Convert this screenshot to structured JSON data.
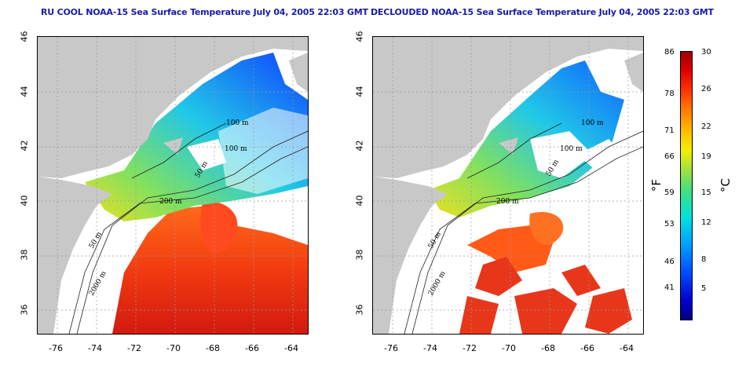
{
  "left_panel": {
    "title": "RU COOL NOAA-15 Sea Surface Temperature July 04, 2005 22:03 GMT",
    "contours": [
      "100 m",
      "100 m",
      "50 m",
      "200 m",
      "50 m",
      "2000 m"
    ]
  },
  "right_panel": {
    "title": "DECLOUDED NOAA-15 Sea Surface Temperature July 04, 2005 22:03 GMT",
    "contours": [
      "100 m",
      "100 m",
      "50 m",
      "200 m",
      "50 m",
      "2000 m"
    ]
  },
  "x_ticks": [
    "-76",
    "-74",
    "-72",
    "-70",
    "-68",
    "-66",
    "-64"
  ],
  "y_ticks": [
    "46",
    "44",
    "42",
    "40",
    "38",
    "36"
  ],
  "colorbar": {
    "fahrenheit_unit": "°F",
    "celsius_unit": "°C",
    "fahrenheit_labels": [
      "86",
      "78",
      "71",
      "66",
      "59",
      "53",
      "46",
      "41"
    ],
    "celsius_labels": [
      "30",
      "26",
      "22",
      "19",
      "15",
      "12",
      "8",
      "5"
    ]
  }
}
